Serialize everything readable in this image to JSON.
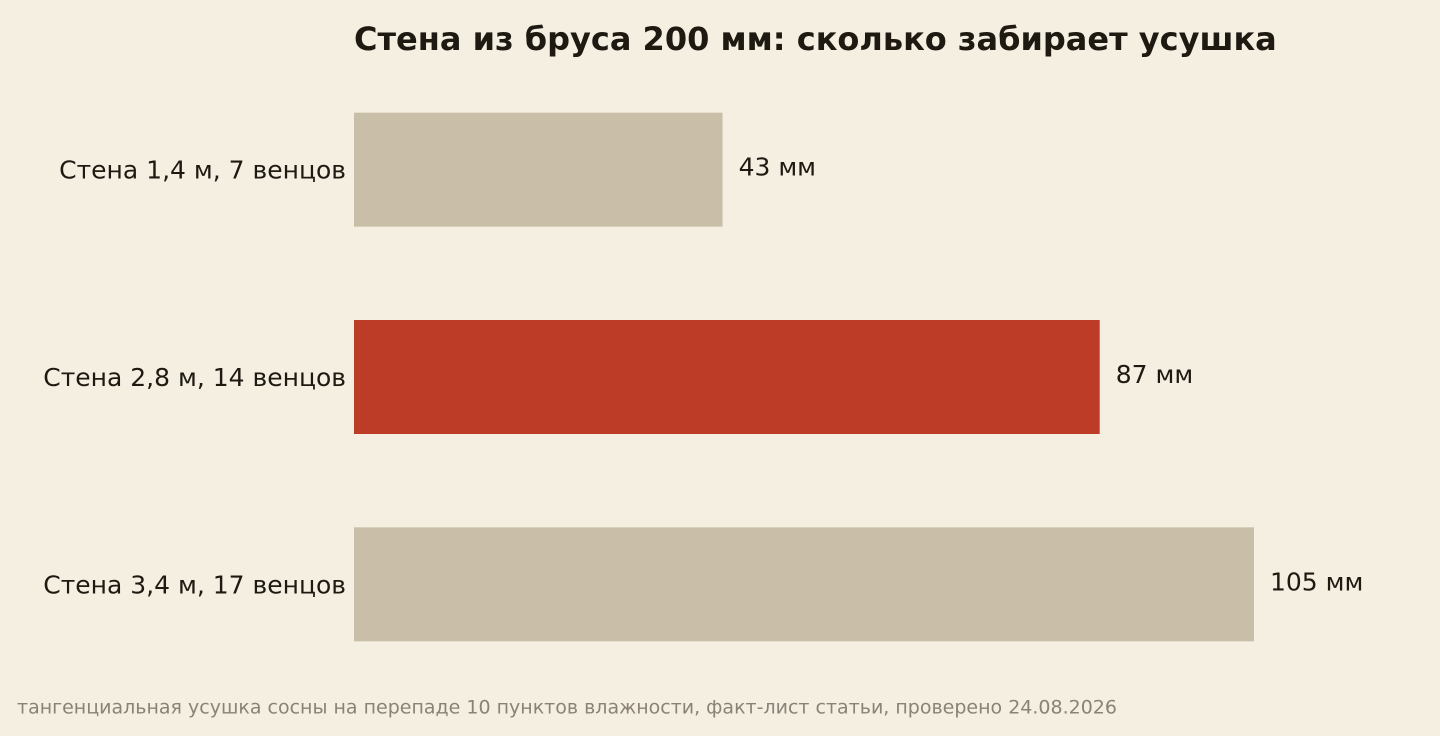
{
  "chart_data": {
    "type": "bar",
    "orientation": "horizontal",
    "title": "Стена из бруса 200 мм: сколько забирает усушка",
    "categories": [
      "Стена 1,4 м, 7 венцов",
      "Стена 2,8 м, 14 венцов",
      "Стена 3,4 м, 17 венцов"
    ],
    "values": [
      43,
      87,
      105
    ],
    "value_labels": [
      "43 мм",
      "87 мм",
      "105 мм"
    ],
    "colors": [
      "#c9bfa8",
      "#bc3c28",
      "#c9bfa8"
    ],
    "footnote": "тангенциальная усушка сосны на перепаде 10 пунктов влажности, факт-лист статьи, проверено 24.08.2026"
  }
}
